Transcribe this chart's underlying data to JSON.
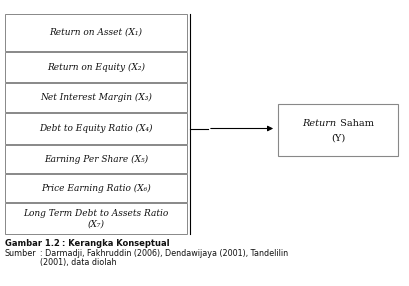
{
  "left_boxes": [
    {
      "label": "Return on Asset (X₁)",
      "two_line": false
    },
    {
      "label": "Return on Equity (X₂)",
      "two_line": false
    },
    {
      "label": "Net Interest Margin (X₃)",
      "two_line": false
    },
    {
      "label": "Debt to Equity Ratio (X₄)",
      "two_line": false
    },
    {
      "label": "Earning Per Share (X₅)",
      "two_line": false
    },
    {
      "label": "Price Earning Ratio (X₆)",
      "two_line": false
    },
    {
      "label": "Long Term Debt to Assets Ratio\n(X₇)",
      "two_line": true
    }
  ],
  "right_box_label_italic": "Return",
  "right_box_label_normal": " Saham",
  "right_box_label_y": "(Y)",
  "caption_bold": "Gambar 1.2",
  "caption_rest": "  : Kerangka Konseptual",
  "source_label": "Sumber",
  "source_text": "   : Darmadji, Fakhruddin (2006), Dendawijaya (2001), Tandelilin\n         (2001), data diolah",
  "bg_color": "#ffffff",
  "box_edge_color": "#888888",
  "text_color": "#111111"
}
